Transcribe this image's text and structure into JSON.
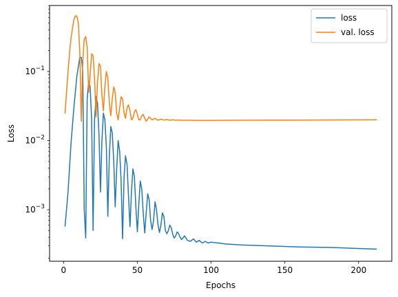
{
  "chart_data": {
    "type": "line",
    "xlabel": "Epochs",
    "ylabel": "Loss",
    "xlim": [
      -9.5,
      222.5
    ],
    "ylim": [
      0.00018,
      0.9
    ],
    "yscale": "log",
    "x_ticks": [
      0,
      50,
      100,
      150,
      200
    ],
    "y_ticks": [
      {
        "value": 0.001,
        "base": "10",
        "exp": "−3"
      },
      {
        "value": 0.01,
        "base": "10",
        "exp": "−2"
      },
      {
        "value": 0.1,
        "base": "10",
        "exp": "−1"
      }
    ],
    "grid": false,
    "legend_position": "top-right",
    "series": [
      {
        "name": "loss",
        "color": "#1f77b4",
        "points": [
          [
            1,
            0.00058
          ],
          [
            3,
            0.0018
          ],
          [
            5,
            0.009
          ],
          [
            7,
            0.03
          ],
          [
            9,
            0.085
          ],
          [
            11,
            0.16
          ],
          [
            12,
            0.16
          ],
          [
            13,
            0.1
          ],
          [
            14,
            0.001
          ],
          [
            15,
            0.00039
          ],
          [
            16,
            0.04
          ],
          [
            17,
            0.072
          ],
          [
            18,
            0.06
          ],
          [
            19,
            0.02
          ],
          [
            20,
            0.0005
          ],
          [
            21,
            0.02
          ],
          [
            22,
            0.043
          ],
          [
            23,
            0.035
          ],
          [
            24,
            0.012
          ],
          [
            25,
            0.0018
          ],
          [
            26,
            0.01
          ],
          [
            27,
            0.025
          ],
          [
            28,
            0.02
          ],
          [
            29,
            0.008
          ],
          [
            30,
            0.0008
          ],
          [
            31,
            0.006
          ],
          [
            32,
            0.016
          ],
          [
            33,
            0.013
          ],
          [
            34,
            0.005
          ],
          [
            35,
            0.0011
          ],
          [
            36,
            0.004
          ],
          [
            37,
            0.01
          ],
          [
            38,
            0.007
          ],
          [
            39,
            0.0026
          ],
          [
            40,
            0.00038
          ],
          [
            41,
            0.003
          ],
          [
            42,
            0.006
          ],
          [
            43,
            0.0045
          ],
          [
            44,
            0.0016
          ],
          [
            45,
            0.00057
          ],
          [
            46,
            0.0018
          ],
          [
            47,
            0.0039
          ],
          [
            48,
            0.003
          ],
          [
            49,
            0.0011
          ],
          [
            50,
            0.00048
          ],
          [
            51,
            0.0012
          ],
          [
            52,
            0.0026
          ],
          [
            53,
            0.002
          ],
          [
            54,
            0.0009
          ],
          [
            55,
            0.00046
          ],
          [
            56,
            0.0009
          ],
          [
            57,
            0.0017
          ],
          [
            58,
            0.0014
          ],
          [
            59,
            0.0007
          ],
          [
            60,
            0.00052
          ],
          [
            61,
            0.0007
          ],
          [
            62,
            0.0013
          ],
          [
            63,
            0.001
          ],
          [
            64,
            0.0006
          ],
          [
            65,
            0.00047
          ],
          [
            66,
            0.0006
          ],
          [
            67,
            0.0009
          ],
          [
            68,
            0.0008
          ],
          [
            69,
            0.0005
          ],
          [
            70,
            0.00045
          ],
          [
            71,
            0.0005
          ],
          [
            72,
            0.0006
          ],
          [
            73,
            0.00055
          ],
          [
            74,
            0.00044
          ],
          [
            75,
            0.00039
          ],
          [
            76,
            0.00042
          ],
          [
            77,
            0.00048
          ],
          [
            78,
            0.00045
          ],
          [
            79,
            0.0004
          ],
          [
            80,
            0.00037
          ],
          [
            82,
            0.00042
          ],
          [
            84,
            0.00036
          ],
          [
            86,
            0.00035
          ],
          [
            88,
            0.00038
          ],
          [
            90,
            0.00034
          ],
          [
            92,
            0.00036
          ],
          [
            94,
            0.00033
          ],
          [
            96,
            0.00035
          ],
          [
            98,
            0.00033
          ],
          [
            100,
            0.00034
          ],
          [
            105,
            0.00033
          ],
          [
            110,
            0.00032
          ],
          [
            120,
            0.00031
          ],
          [
            140,
            0.0003
          ],
          [
            160,
            0.00029
          ],
          [
            180,
            0.000285
          ],
          [
            200,
            0.000275
          ],
          [
            212,
            0.00027
          ]
        ]
      },
      {
        "name": "val. loss",
        "color": "#ff7f0e",
        "points": [
          [
            1,
            0.025
          ],
          [
            2,
            0.05
          ],
          [
            3,
            0.1
          ],
          [
            4,
            0.18
          ],
          [
            5,
            0.3
          ],
          [
            6,
            0.42
          ],
          [
            7,
            0.56
          ],
          [
            8,
            0.64
          ],
          [
            9,
            0.63
          ],
          [
            10,
            0.5
          ],
          [
            11,
            0.19
          ],
          [
            12,
            0.019
          ],
          [
            13,
            0.14
          ],
          [
            14,
            0.29
          ],
          [
            15,
            0.32
          ],
          [
            16,
            0.22
          ],
          [
            17,
            0.05
          ],
          [
            18,
            0.09
          ],
          [
            19,
            0.18
          ],
          [
            20,
            0.17
          ],
          [
            21,
            0.08
          ],
          [
            22,
            0.022
          ],
          [
            23,
            0.07
          ],
          [
            24,
            0.13
          ],
          [
            25,
            0.12
          ],
          [
            26,
            0.045
          ],
          [
            27,
            0.027
          ],
          [
            28,
            0.06
          ],
          [
            29,
            0.1
          ],
          [
            30,
            0.08
          ],
          [
            31,
            0.035
          ],
          [
            32,
            0.023
          ],
          [
            33,
            0.04
          ],
          [
            34,
            0.06
          ],
          [
            35,
            0.05
          ],
          [
            36,
            0.025
          ],
          [
            37,
            0.02
          ],
          [
            38,
            0.03
          ],
          [
            39,
            0.043
          ],
          [
            40,
            0.04
          ],
          [
            41,
            0.025
          ],
          [
            42,
            0.021
          ],
          [
            43,
            0.03
          ],
          [
            44,
            0.033
          ],
          [
            45,
            0.027
          ],
          [
            46,
            0.02
          ],
          [
            47,
            0.021
          ],
          [
            48,
            0.026
          ],
          [
            49,
            0.028
          ],
          [
            50,
            0.024
          ],
          [
            51,
            0.02
          ],
          [
            52,
            0.02
          ],
          [
            53,
            0.023
          ],
          [
            54,
            0.024
          ],
          [
            55,
            0.021
          ],
          [
            56,
            0.019
          ],
          [
            58,
            0.022
          ],
          [
            60,
            0.02
          ],
          [
            62,
            0.021
          ],
          [
            64,
            0.0197
          ],
          [
            66,
            0.0205
          ],
          [
            68,
            0.0198
          ],
          [
            70,
            0.0202
          ],
          [
            72,
            0.0197
          ],
          [
            74,
            0.02
          ],
          [
            76,
            0.0197
          ],
          [
            78,
            0.0199
          ],
          [
            80,
            0.0197
          ],
          [
            85,
            0.0197
          ],
          [
            90,
            0.0196
          ],
          [
            100,
            0.0196
          ],
          [
            120,
            0.0197
          ],
          [
            150,
            0.0198
          ],
          [
            180,
            0.0199
          ],
          [
            212,
            0.02
          ]
        ]
      }
    ]
  }
}
